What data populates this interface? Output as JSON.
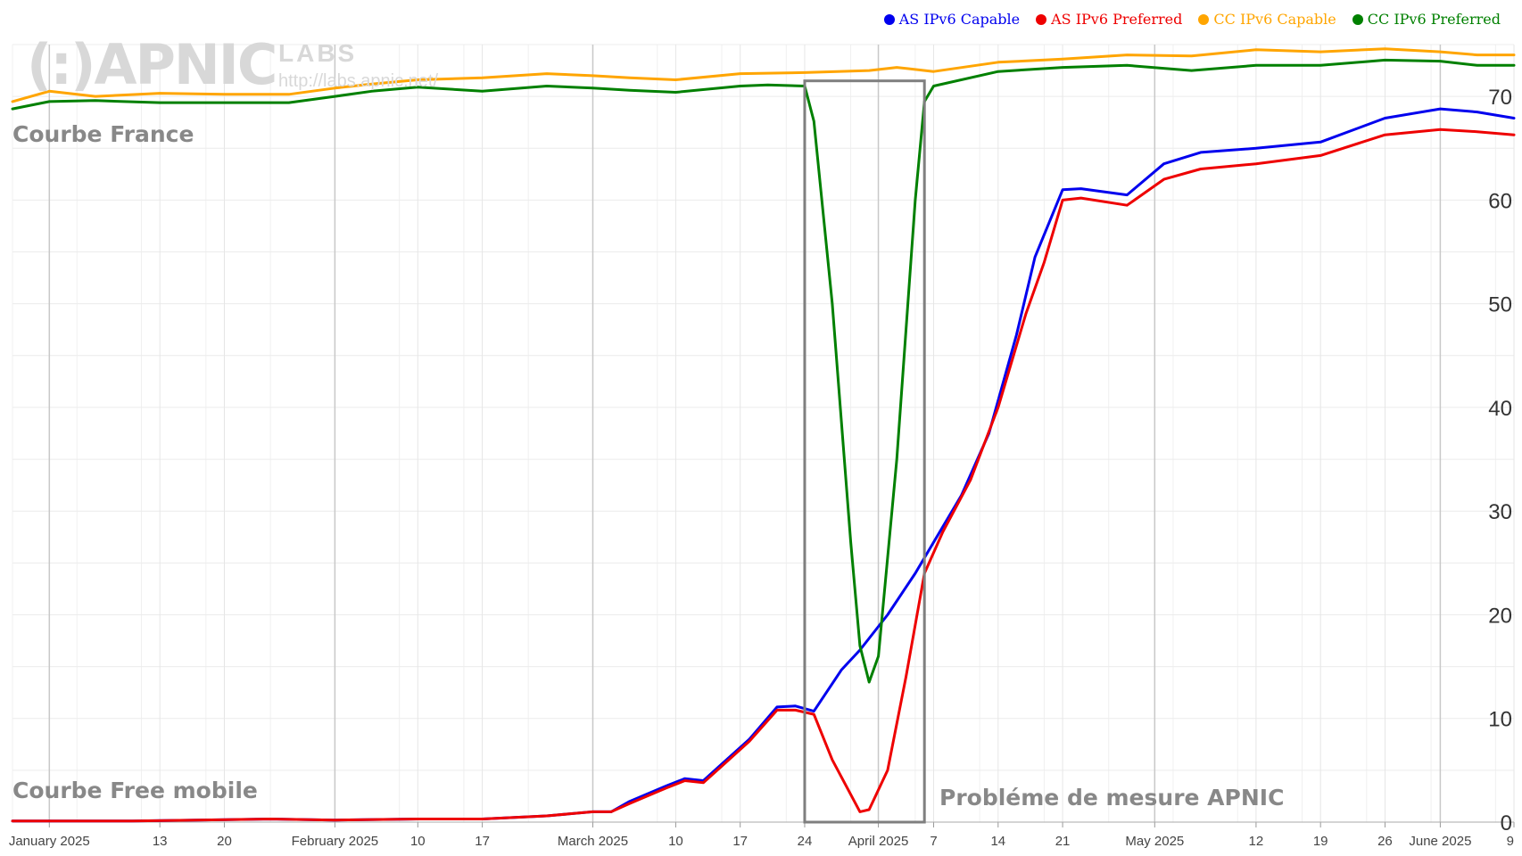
{
  "legend": [
    {
      "label": "AS IPv6 Capable",
      "color": "#0000ee"
    },
    {
      "label": "AS IPv6 Preferred",
      "color": "#ee0000"
    },
    {
      "label": "CC IPv6 Capable",
      "color": "#ffa500"
    },
    {
      "label": "CC IPv6 Preferred",
      "color": "#008000"
    }
  ],
  "watermark": {
    "logo": "(:)APNIC",
    "labs": "LABS",
    "url": "http://labs.apnic.net/"
  },
  "annotations": {
    "france": "Courbe France",
    "free_mobile": "Courbe Free mobile",
    "measurement_problem": "Probléme de mesure APNIC"
  },
  "chart_data": {
    "type": "line",
    "x_unit": "day",
    "x_start": "2024-12-28",
    "x_end": "2025-06-09",
    "ylim": [
      0,
      75
    ],
    "y_ticks": [
      0,
      10,
      20,
      30,
      40,
      50,
      60,
      70
    ],
    "y_axis_side": "right",
    "grid": true,
    "legend_position": "top-right",
    "x_ticks": [
      {
        "date": "2025-01-01",
        "label": "January 2025",
        "major": true
      },
      {
        "date": "2025-01-13",
        "label": "13"
      },
      {
        "date": "2025-01-20",
        "label": "20"
      },
      {
        "date": "2025-02-01",
        "label": "February 2025",
        "major": true
      },
      {
        "date": "2025-02-10",
        "label": "10"
      },
      {
        "date": "2025-02-17",
        "label": "17"
      },
      {
        "date": "2025-03-01",
        "label": "March 2025",
        "major": true
      },
      {
        "date": "2025-03-10",
        "label": "10"
      },
      {
        "date": "2025-03-17",
        "label": "17"
      },
      {
        "date": "2025-03-24",
        "label": "24"
      },
      {
        "date": "2025-04-01",
        "label": "April 2025",
        "major": true
      },
      {
        "date": "2025-04-07",
        "label": "7"
      },
      {
        "date": "2025-04-14",
        "label": "14"
      },
      {
        "date": "2025-04-21",
        "label": "21"
      },
      {
        "date": "2025-05-01",
        "label": "May 2025",
        "major": true
      },
      {
        "date": "2025-05-12",
        "label": "12"
      },
      {
        "date": "2025-05-19",
        "label": "19"
      },
      {
        "date": "2025-05-26",
        "label": "26"
      },
      {
        "date": "2025-06-01",
        "label": "June 2025",
        "major": true
      },
      {
        "date": "2025-06-09",
        "label": "9"
      }
    ],
    "highlight": {
      "x_start": "2025-03-24",
      "x_end": "2025-04-06",
      "y_start": 0,
      "y_end": 71.5
    },
    "series": [
      {
        "name": "AS IPv6 Capable",
        "color": "#0000ee",
        "points": [
          [
            "2024-12-28",
            0.1
          ],
          [
            "2025-01-10",
            0.1
          ],
          [
            "2025-01-25",
            0.3
          ],
          [
            "2025-02-01",
            0.2
          ],
          [
            "2025-02-10",
            0.3
          ],
          [
            "2025-02-17",
            0.3
          ],
          [
            "2025-02-24",
            0.6
          ],
          [
            "2025-03-01",
            1.0
          ],
          [
            "2025-03-03",
            1.0
          ],
          [
            "2025-03-05",
            2.0
          ],
          [
            "2025-03-09",
            3.5
          ],
          [
            "2025-03-11",
            4.2
          ],
          [
            "2025-03-13",
            4.0
          ],
          [
            "2025-03-15",
            5.6
          ],
          [
            "2025-03-18",
            8.0
          ],
          [
            "2025-03-21",
            11.1
          ],
          [
            "2025-03-23",
            11.2
          ],
          [
            "2025-03-25",
            10.7
          ],
          [
            "2025-03-28",
            14.7
          ],
          [
            "2025-03-30",
            16.6
          ],
          [
            "2025-04-02",
            20.0
          ],
          [
            "2025-04-05",
            24.0
          ],
          [
            "2025-04-07",
            27.0
          ],
          [
            "2025-04-10",
            31.5
          ],
          [
            "2025-04-13",
            37.5
          ],
          [
            "2025-04-16",
            47.0
          ],
          [
            "2025-04-18",
            54.5
          ],
          [
            "2025-04-21",
            61.0
          ],
          [
            "2025-04-23",
            61.1
          ],
          [
            "2025-04-28",
            60.5
          ],
          [
            "2025-05-02",
            63.5
          ],
          [
            "2025-05-06",
            64.6
          ],
          [
            "2025-05-12",
            65.0
          ],
          [
            "2025-05-19",
            65.6
          ],
          [
            "2025-05-26",
            67.9
          ],
          [
            "2025-06-01",
            68.8
          ],
          [
            "2025-06-05",
            68.5
          ],
          [
            "2025-06-09",
            67.9
          ]
        ]
      },
      {
        "name": "AS IPv6 Preferred",
        "color": "#ee0000",
        "points": [
          [
            "2024-12-28",
            0.1
          ],
          [
            "2025-01-10",
            0.1
          ],
          [
            "2025-01-25",
            0.3
          ],
          [
            "2025-02-01",
            0.2
          ],
          [
            "2025-02-10",
            0.3
          ],
          [
            "2025-02-17",
            0.3
          ],
          [
            "2025-02-24",
            0.6
          ],
          [
            "2025-03-01",
            1.0
          ],
          [
            "2025-03-03",
            1.0
          ],
          [
            "2025-03-05",
            1.8
          ],
          [
            "2025-03-09",
            3.3
          ],
          [
            "2025-03-11",
            4.0
          ],
          [
            "2025-03-13",
            3.8
          ],
          [
            "2025-03-15",
            5.4
          ],
          [
            "2025-03-18",
            7.8
          ],
          [
            "2025-03-21",
            10.8
          ],
          [
            "2025-03-23",
            10.8
          ],
          [
            "2025-03-25",
            10.4
          ],
          [
            "2025-03-27",
            6.0
          ],
          [
            "2025-03-30",
            1.0
          ],
          [
            "2025-03-31",
            1.2
          ],
          [
            "2025-04-02",
            5.0
          ],
          [
            "2025-04-04",
            14.0
          ],
          [
            "2025-04-06",
            24.0
          ],
          [
            "2025-04-08",
            28.0
          ],
          [
            "2025-04-11",
            33.0
          ],
          [
            "2025-04-14",
            40.0
          ],
          [
            "2025-04-17",
            49.0
          ],
          [
            "2025-04-19",
            54.0
          ],
          [
            "2025-04-21",
            60.0
          ],
          [
            "2025-04-23",
            60.2
          ],
          [
            "2025-04-28",
            59.5
          ],
          [
            "2025-05-02",
            62.0
          ],
          [
            "2025-05-06",
            63.0
          ],
          [
            "2025-05-12",
            63.5
          ],
          [
            "2025-05-19",
            64.3
          ],
          [
            "2025-05-26",
            66.3
          ],
          [
            "2025-06-01",
            66.8
          ],
          [
            "2025-06-05",
            66.6
          ],
          [
            "2025-06-09",
            66.3
          ]
        ]
      },
      {
        "name": "CC IPv6 Capable",
        "color": "#ffa500",
        "points": [
          [
            "2024-12-28",
            69.5
          ],
          [
            "2025-01-01",
            70.5
          ],
          [
            "2025-01-06",
            70.0
          ],
          [
            "2025-01-13",
            70.3
          ],
          [
            "2025-01-20",
            70.2
          ],
          [
            "2025-01-27",
            70.2
          ],
          [
            "2025-02-01",
            70.8
          ],
          [
            "2025-02-05",
            71.2
          ],
          [
            "2025-02-10",
            71.6
          ],
          [
            "2025-02-17",
            71.8
          ],
          [
            "2025-02-24",
            72.2
          ],
          [
            "2025-03-01",
            72.0
          ],
          [
            "2025-03-05",
            71.8
          ],
          [
            "2025-03-10",
            71.6
          ],
          [
            "2025-03-17",
            72.2
          ],
          [
            "2025-03-24",
            72.3
          ],
          [
            "2025-03-31",
            72.5
          ],
          [
            "2025-04-03",
            72.8
          ],
          [
            "2025-04-07",
            72.4
          ],
          [
            "2025-04-14",
            73.3
          ],
          [
            "2025-04-21",
            73.6
          ],
          [
            "2025-04-28",
            74.0
          ],
          [
            "2025-05-05",
            73.9
          ],
          [
            "2025-05-12",
            74.5
          ],
          [
            "2025-05-19",
            74.3
          ],
          [
            "2025-05-26",
            74.6
          ],
          [
            "2025-06-01",
            74.3
          ],
          [
            "2025-06-05",
            74.0
          ],
          [
            "2025-06-09",
            74.0
          ]
        ]
      },
      {
        "name": "CC IPv6 Preferred",
        "color": "#008000",
        "points": [
          [
            "2024-12-28",
            68.8
          ],
          [
            "2025-01-01",
            69.5
          ],
          [
            "2025-01-06",
            69.6
          ],
          [
            "2025-01-13",
            69.4
          ],
          [
            "2025-01-20",
            69.4
          ],
          [
            "2025-01-27",
            69.4
          ],
          [
            "2025-02-01",
            70.0
          ],
          [
            "2025-02-05",
            70.5
          ],
          [
            "2025-02-10",
            70.9
          ],
          [
            "2025-02-17",
            70.5
          ],
          [
            "2025-02-24",
            71.0
          ],
          [
            "2025-03-01",
            70.8
          ],
          [
            "2025-03-05",
            70.6
          ],
          [
            "2025-03-10",
            70.4
          ],
          [
            "2025-03-17",
            71.0
          ],
          [
            "2025-03-20",
            71.1
          ],
          [
            "2025-03-24",
            71.0
          ],
          [
            "2025-03-25",
            67.6
          ],
          [
            "2025-03-27",
            50.0
          ],
          [
            "2025-03-29",
            27.0
          ],
          [
            "2025-03-30",
            17.0
          ],
          [
            "2025-03-31",
            13.5
          ],
          [
            "2025-04-01",
            16.0
          ],
          [
            "2025-04-03",
            35.0
          ],
          [
            "2025-04-05",
            60.0
          ],
          [
            "2025-04-06",
            69.5
          ],
          [
            "2025-04-07",
            71.0
          ],
          [
            "2025-04-14",
            72.4
          ],
          [
            "2025-04-21",
            72.8
          ],
          [
            "2025-04-28",
            73.0
          ],
          [
            "2025-05-05",
            72.5
          ],
          [
            "2025-05-12",
            73.0
          ],
          [
            "2025-05-19",
            73.0
          ],
          [
            "2025-05-26",
            73.5
          ],
          [
            "2025-06-01",
            73.4
          ],
          [
            "2025-06-05",
            73.0
          ],
          [
            "2025-06-09",
            73.0
          ]
        ]
      }
    ]
  }
}
